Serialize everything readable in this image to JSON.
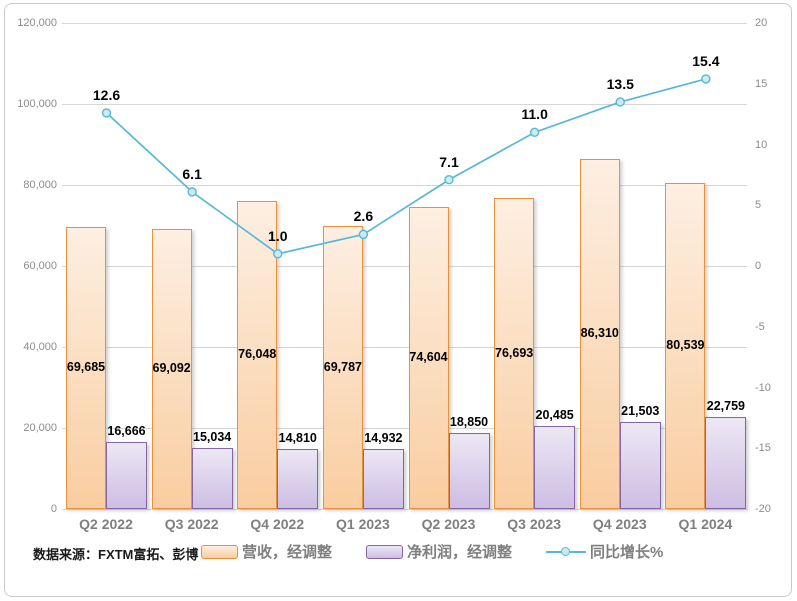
{
  "source_note": "数据来源：FXTM富拓、彭博",
  "colors": {
    "revenue_border": "#E8913A",
    "revenue_fill_top": "#FDEFE2",
    "revenue_fill_bottom": "#F9CDA0",
    "profit_border": "#8466A5",
    "profit_fill_top": "#ECE7F4",
    "profit_fill_bottom": "#CDBEE3",
    "line": "#57B7D7",
    "marker_fill": "#CAEAF5",
    "grid": "#D6D6D6",
    "axis_text": "#8C8C8C",
    "x_text": "#7F7F7F",
    "legend_text": "#7F7F7F",
    "label_text": "#000000",
    "frame_border": "#C9C9C9"
  },
  "chart_data": {
    "type": "combo_bar_line",
    "title": "",
    "categories": [
      "Q2 2022",
      "Q3 2022",
      "Q4 2022",
      "Q1 2023",
      "Q2 2023",
      "Q3 2023",
      "Q4 2023",
      "Q1 2024"
    ],
    "series": [
      {
        "name": "营收，经调整",
        "type": "bar",
        "axis": "left",
        "values": [
          69685,
          69092,
          76048,
          69787,
          74604,
          76693,
          86310,
          80539
        ],
        "labels": [
          "69,685",
          "69,092",
          "76,048",
          "69,787",
          "74,604",
          "76,693",
          "86,310",
          "80,539"
        ]
      },
      {
        "name": "净利润，经调整",
        "type": "bar",
        "axis": "left",
        "values": [
          16666,
          15034,
          14810,
          14932,
          18850,
          20485,
          21503,
          22759
        ],
        "labels": [
          "16,666",
          "15,034",
          "14,810",
          "14,932",
          "18,850",
          "20,485",
          "21,503",
          "22,759"
        ]
      },
      {
        "name": "同比增长%",
        "type": "line",
        "axis": "right",
        "values": [
          12.6,
          6.1,
          1.0,
          2.6,
          7.1,
          11.0,
          13.5,
          15.4
        ],
        "labels": [
          "12.6",
          "6.1",
          "1.0",
          "2.6",
          "7.1",
          "11.0",
          "13.5",
          "15.4"
        ]
      }
    ],
    "left_axis": {
      "min": 0,
      "max": 120000,
      "step": 20000,
      "tick_labels": [
        "120,000",
        "100,000",
        "80,000",
        "60,000",
        "40,000",
        "20,000",
        "0"
      ]
    },
    "right_axis": {
      "min": -20,
      "max": 20,
      "step": 5,
      "tick_labels": [
        "20",
        "15",
        "10",
        "5",
        "0",
        "-5",
        "-10",
        "-15",
        "-20"
      ]
    },
    "grid": true,
    "legend_position": "bottom"
  }
}
